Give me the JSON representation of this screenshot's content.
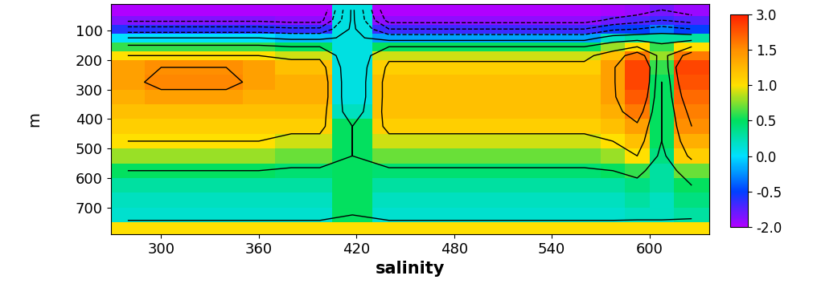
{
  "chart_data": {
    "type": "heatmap",
    "xlabel": "salinity",
    "ylabel": "m",
    "xlim": [
      269,
      637
    ],
    "ylim": [
      790,
      10
    ],
    "xticks": [
      300,
      360,
      420,
      480,
      540,
      600
    ],
    "yticks": [
      100,
      200,
      300,
      400,
      500,
      600,
      700
    ],
    "x_edges": [
      269,
      290,
      310,
      330,
      350,
      370,
      390,
      405,
      430,
      450,
      470,
      490,
      510,
      530,
      550,
      570,
      585,
      600,
      615,
      637
    ],
    "y_edges": [
      10,
      50,
      80,
      110,
      140,
      170,
      200,
      250,
      300,
      350,
      400,
      450,
      500,
      550,
      600,
      650,
      700,
      750,
      790
    ],
    "cells": [
      [
        -2.0,
        -2.0,
        -2.0,
        -2.0,
        -2.0,
        -2.0,
        -2.0,
        0.1,
        -2.0,
        -2.0,
        -2.0,
        -2.0,
        -2.0,
        -2.0,
        -2.0,
        -1.9,
        -1.8,
        -1.5,
        -1.8
      ],
      [
        -1.6,
        -1.6,
        -1.6,
        -1.6,
        -1.6,
        -1.7,
        -1.7,
        0.1,
        -1.7,
        -1.7,
        -1.7,
        -1.7,
        -1.7,
        -1.7,
        -1.7,
        -1.4,
        -1.2,
        -1.0,
        -1.2
      ],
      [
        -0.8,
        -0.8,
        -0.8,
        -0.8,
        -0.8,
        -0.9,
        -0.9,
        0.1,
        -1.0,
        -1.0,
        -1.0,
        -1.0,
        -1.0,
        -1.0,
        -1.0,
        -0.6,
        -0.5,
        -0.3,
        -0.5
      ],
      [
        0.0,
        0.0,
        0.0,
        0.0,
        0.0,
        -0.1,
        -0.1,
        0.1,
        -0.2,
        -0.2,
        -0.2,
        -0.2,
        -0.2,
        -0.2,
        -0.2,
        0.2,
        0.3,
        0.3,
        0.3
      ],
      [
        0.6,
        0.6,
        0.6,
        0.6,
        0.6,
        0.5,
        0.5,
        0.1,
        0.5,
        0.5,
        0.5,
        0.5,
        0.5,
        0.5,
        0.5,
        0.8,
        1.0,
        0.6,
        1.0
      ],
      [
        1.0,
        1.0,
        1.0,
        1.0,
        1.0,
        0.9,
        0.9,
        0.1,
        0.9,
        0.9,
        0.9,
        0.9,
        0.9,
        0.9,
        0.9,
        1.2,
        1.8,
        0.8,
        1.8
      ],
      [
        1.4,
        1.5,
        1.5,
        1.5,
        1.4,
        1.2,
        1.2,
        0.1,
        1.1,
        1.1,
        1.1,
        1.1,
        1.1,
        1.1,
        1.1,
        1.4,
        2.5,
        0.6,
        2.5
      ],
      [
        1.4,
        1.6,
        1.6,
        1.6,
        1.4,
        1.3,
        1.3,
        0.1,
        1.2,
        1.2,
        1.2,
        1.2,
        1.2,
        1.2,
        1.2,
        1.4,
        2.5,
        0.5,
        2.3
      ],
      [
        1.3,
        1.4,
        1.4,
        1.4,
        1.3,
        1.3,
        1.3,
        0.1,
        1.2,
        1.2,
        1.2,
        1.2,
        1.2,
        1.2,
        1.2,
        1.4,
        2.2,
        0.5,
        2.0
      ],
      [
        1.2,
        1.2,
        1.2,
        1.2,
        1.2,
        1.2,
        1.2,
        0.2,
        1.2,
        1.2,
        1.2,
        1.2,
        1.2,
        1.2,
        1.2,
        1.3,
        1.8,
        0.5,
        1.7
      ],
      [
        1.1,
        1.1,
        1.1,
        1.1,
        1.1,
        1.1,
        1.1,
        0.5,
        1.1,
        1.1,
        1.1,
        1.1,
        1.1,
        1.1,
        1.1,
        1.2,
        1.4,
        0.5,
        1.5
      ],
      [
        1.0,
        1.0,
        1.0,
        1.0,
        1.0,
        0.9,
        0.9,
        0.5,
        0.9,
        0.9,
        0.9,
        0.9,
        0.9,
        0.9,
        0.9,
        1.0,
        1.2,
        0.5,
        1.3
      ],
      [
        0.8,
        0.8,
        0.8,
        0.8,
        0.8,
        0.7,
        0.7,
        0.5,
        0.7,
        0.7,
        0.7,
        0.7,
        0.7,
        0.7,
        0.7,
        0.8,
        1.0,
        0.4,
        1.1
      ],
      [
        0.5,
        0.5,
        0.5,
        0.5,
        0.5,
        0.45,
        0.45,
        0.5,
        0.45,
        0.45,
        0.45,
        0.45,
        0.45,
        0.45,
        0.45,
        0.5,
        0.6,
        0.3,
        0.7
      ],
      [
        0.3,
        0.3,
        0.3,
        0.3,
        0.3,
        0.3,
        0.3,
        0.5,
        0.3,
        0.3,
        0.3,
        0.3,
        0.3,
        0.3,
        0.3,
        0.3,
        0.4,
        0.3,
        0.5
      ],
      [
        0.2,
        0.2,
        0.2,
        0.2,
        0.2,
        0.2,
        0.2,
        0.5,
        0.2,
        0.2,
        0.2,
        0.2,
        0.2,
        0.2,
        0.2,
        0.2,
        0.3,
        0.2,
        0.4
      ],
      [
        0.15,
        0.15,
        0.15,
        0.15,
        0.15,
        0.15,
        0.15,
        0.5,
        0.15,
        0.15,
        0.15,
        0.15,
        0.15,
        0.15,
        0.15,
        0.15,
        0.2,
        0.2,
        0.3
      ],
      [
        1.0,
        1.0,
        1.0,
        1.0,
        1.0,
        1.0,
        1.0,
        1.0,
        1.0,
        1.0,
        1.0,
        1.0,
        1.0,
        1.0,
        1.0,
        1.0,
        1.0,
        1.0,
        1.0
      ]
    ],
    "contour_levels": [
      -1.5,
      -1.0,
      -0.5,
      0.0,
      0.5,
      1.0,
      1.5
    ],
    "colorbar": {
      "range": [
        -2.0,
        3.0
      ],
      "ticks": [
        -2.0,
        -0.5,
        0.0,
        0.5,
        1.0,
        1.5,
        3.0
      ]
    }
  }
}
